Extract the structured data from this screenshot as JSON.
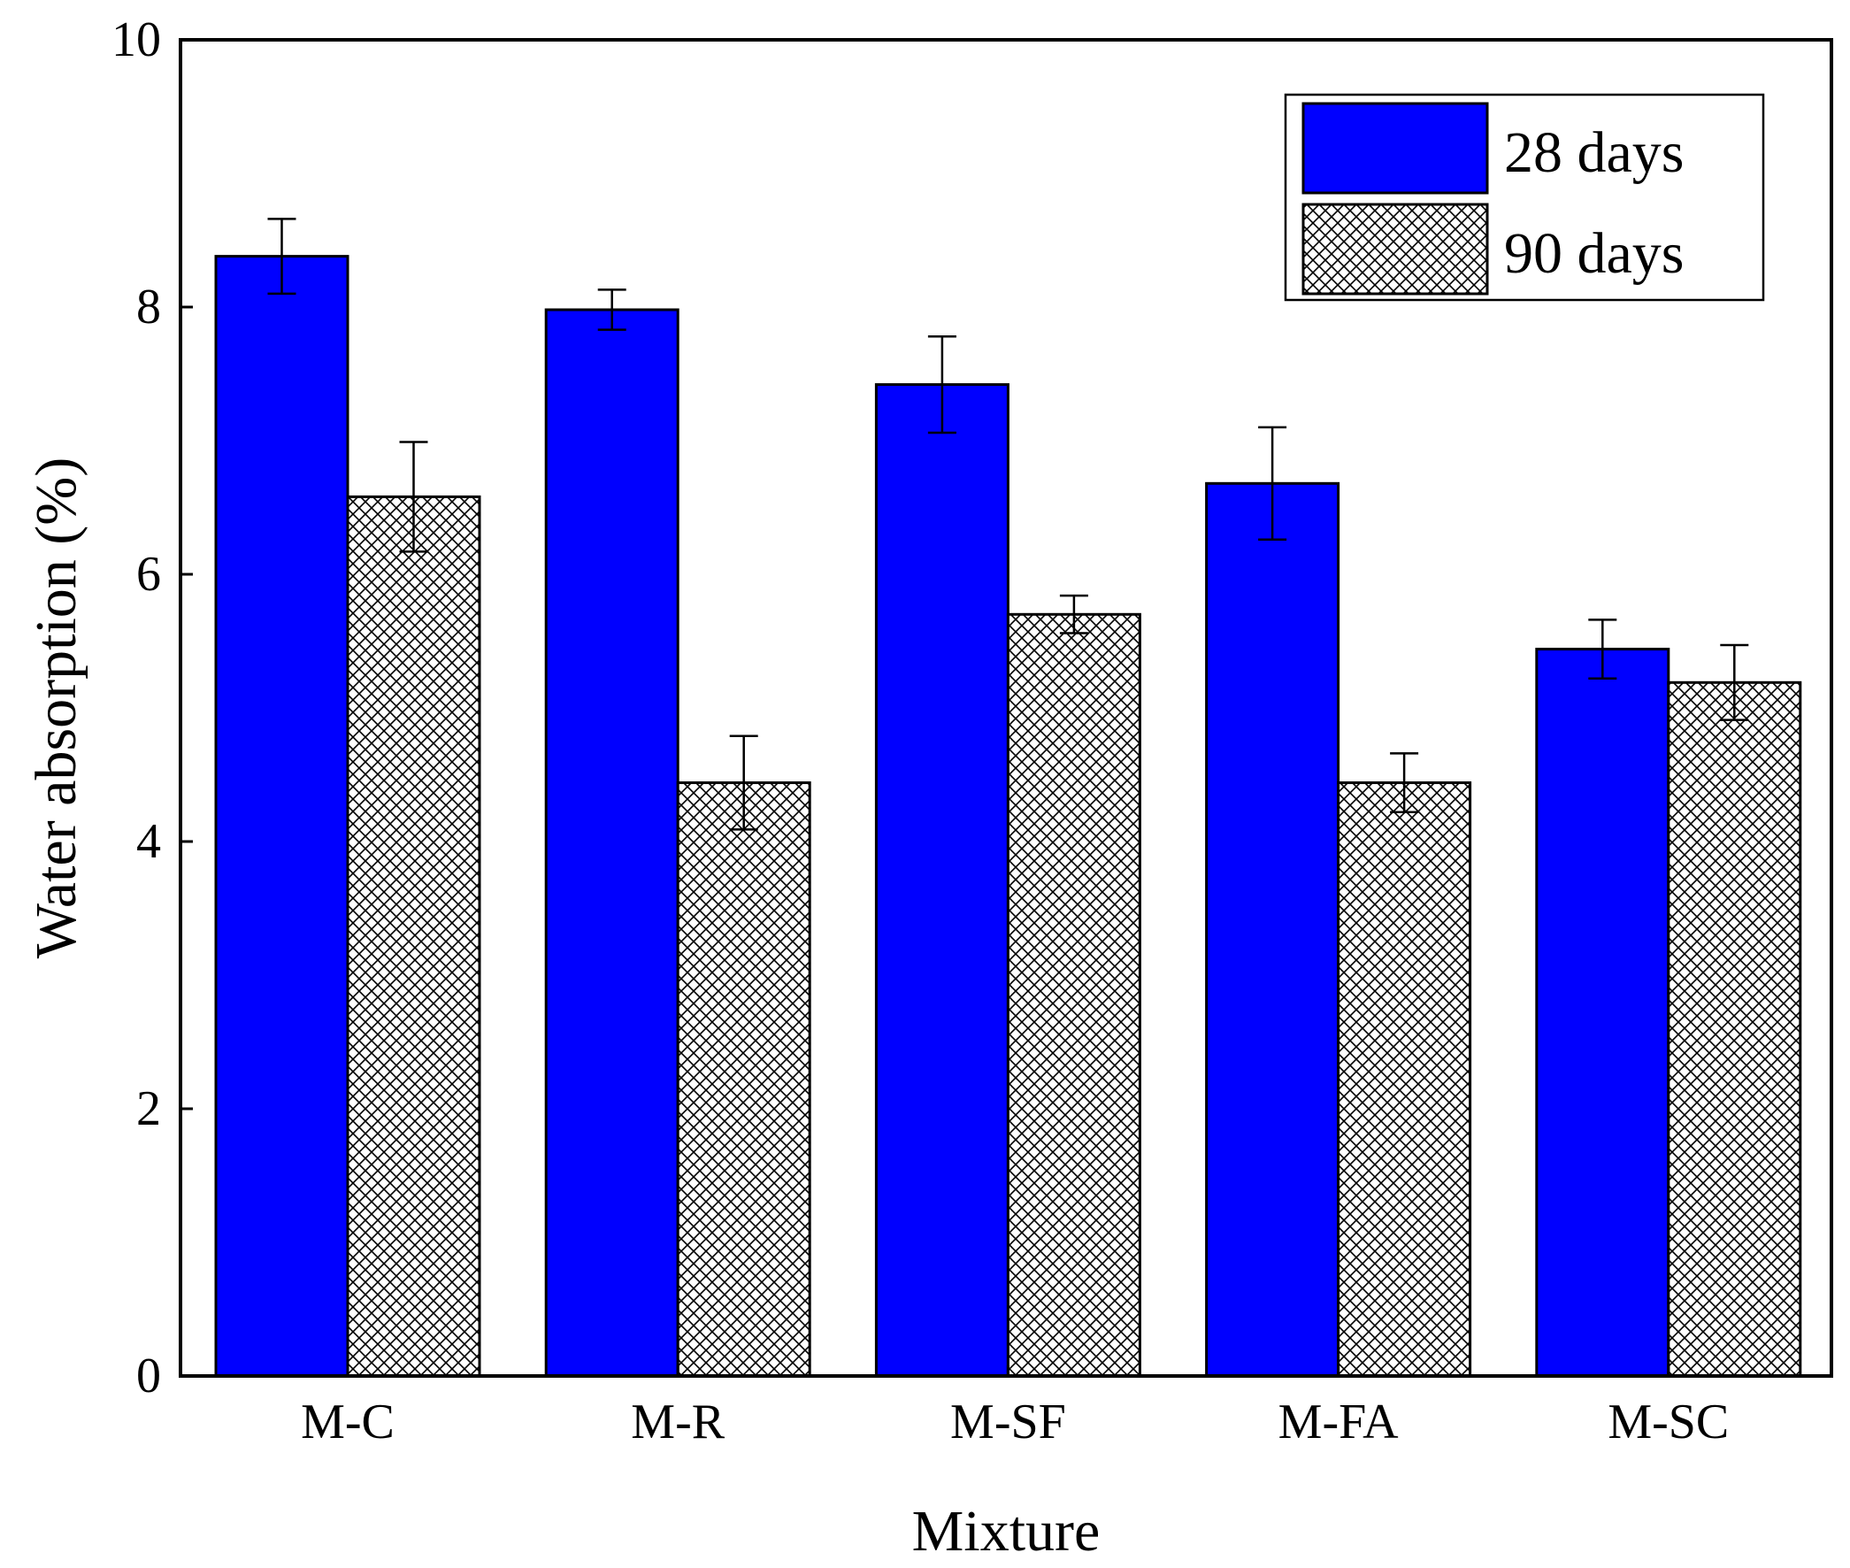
{
  "chart_data": {
    "type": "bar",
    "title": "",
    "xlabel": "Mixture",
    "ylabel": "Water absorption (%)",
    "ylim": [
      0,
      10
    ],
    "yticks": [
      0,
      2,
      4,
      6,
      8,
      10
    ],
    "ytick_labels": [
      "0",
      "2",
      "4",
      "6",
      "8",
      "10"
    ],
    "categories": [
      "M-C",
      "M-R",
      "M-SF",
      "M-FA",
      "M-SC"
    ],
    "series": [
      {
        "name": "28 days",
        "fill": "solid",
        "color": "#0000ff",
        "values": [
          8.38,
          7.98,
          7.42,
          6.68,
          5.44
        ],
        "errors": [
          0.28,
          0.15,
          0.36,
          0.42,
          0.22
        ]
      },
      {
        "name": "90 days",
        "fill": "crosshatch",
        "color": "#ffffff",
        "values": [
          6.58,
          4.44,
          5.7,
          4.44,
          5.19
        ],
        "errors": [
          0.41,
          0.35,
          0.14,
          0.22,
          0.28
        ]
      }
    ],
    "legend_position": "top-right",
    "grid": false
  }
}
